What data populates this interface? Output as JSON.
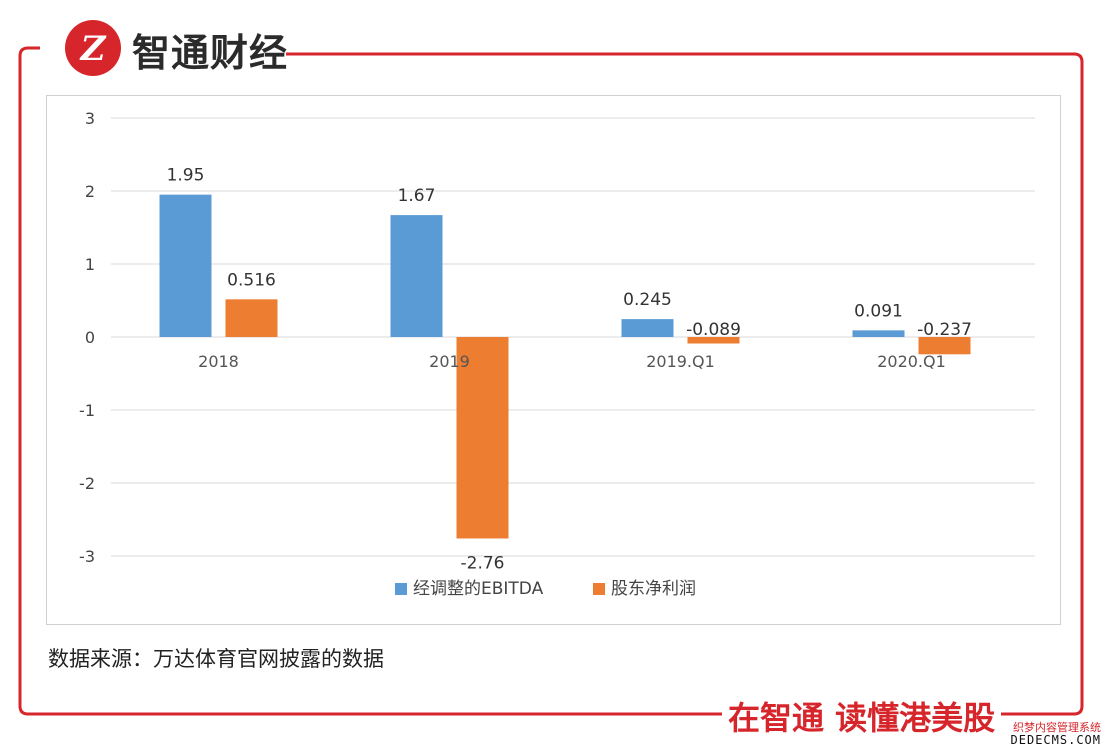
{
  "header": {
    "logo_mark": "Z",
    "brand_name": "智通财经"
  },
  "colors": {
    "frame_red": "#d6262b",
    "series_blue": "#5b9bd5",
    "series_orange": "#ed7d31",
    "grid": "#d9d9d9"
  },
  "chart_data": {
    "type": "bar",
    "categories": [
      "2018",
      "2019",
      "2019.Q1",
      "2020.Q1"
    ],
    "series": [
      {
        "name": "经调整的EBITDA",
        "values": [
          1.95,
          1.67,
          0.245,
          0.091
        ],
        "labels": [
          "1.95",
          "1.67",
          "0.245",
          "0.091"
        ],
        "color": "#5b9bd5"
      },
      {
        "name": "股东净利润",
        "values": [
          0.516,
          -2.76,
          -0.089,
          -0.237
        ],
        "labels": [
          "0.516",
          "-2.76",
          "-0.089",
          "-0.237"
        ],
        "color": "#ed7d31"
      }
    ],
    "ylim": [
      -3,
      3
    ],
    "yticks": [
      "3",
      "2",
      "1",
      "0",
      "-1",
      "-2",
      "-3"
    ],
    "ytick_values": [
      3,
      2,
      1,
      0,
      -1,
      -2,
      -3
    ],
    "grid": true,
    "legend_position": "bottom",
    "title": "",
    "xlabel": "",
    "ylabel": ""
  },
  "footer": {
    "source": "数据来源：万达体育官网披露的数据",
    "slogan": "在智通 读懂港美股"
  },
  "watermark": {
    "line1": "织梦内容管理系统",
    "line2": "DEDECMS.COM"
  }
}
